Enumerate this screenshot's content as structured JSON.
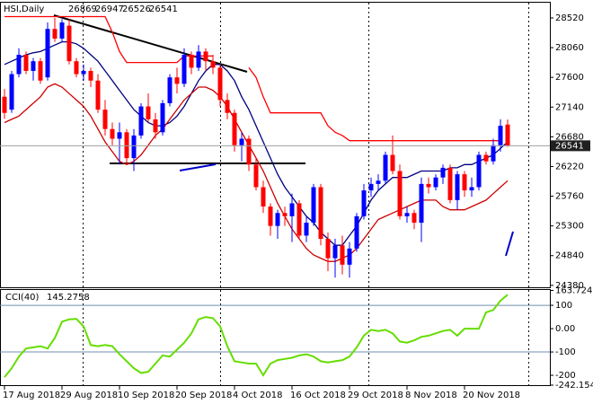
{
  "chart_data": [
    {
      "type": "candlestick",
      "title": "HSI,Daily",
      "x": [
        "17 Aug 2018",
        null,
        null,
        null,
        null,
        null,
        null,
        null,
        "29 Aug 2018",
        null,
        null,
        null,
        null,
        null,
        null,
        null,
        "10 Sep 2018",
        null,
        null,
        null,
        null,
        null,
        null,
        null,
        "20 Sep 2018",
        null,
        null,
        null,
        null,
        null,
        null,
        null,
        "4 Oct 2018",
        null,
        null,
        null,
        null,
        null,
        null,
        null,
        "16 Oct 2018",
        null,
        null,
        null,
        null,
        null,
        null,
        null,
        "29 Oct 2018",
        null,
        null,
        null,
        null,
        null,
        null,
        null,
        "8 Nov 2018",
        null,
        null,
        null,
        null,
        null,
        null,
        null,
        "20 Nov 2018",
        null,
        null,
        null,
        null,
        null,
        null
      ],
      "open": [
        27300,
        27100,
        27650,
        27950,
        27700,
        27850,
        27600,
        28350,
        28200,
        28400,
        27850,
        27650,
        27700,
        27550,
        27100,
        26800,
        26650,
        26750,
        26350,
        26700,
        27150,
        26950,
        26750,
        27200,
        27600,
        27500,
        27950,
        27750,
        28000,
        27850,
        27750,
        27250,
        27050,
        26550,
        26650,
        26250,
        25900,
        25600,
        25300,
        25500,
        25450,
        25650,
        25150,
        25350,
        25900,
        25100,
        24800,
        25000,
        24700,
        24950,
        25450,
        25850,
        25950,
        26000,
        26400,
        26150,
        25450,
        25500,
        25350,
        25950,
        25900,
        26050,
        26200,
        25700,
        26100,
        25850,
        25900,
        26400,
        26300,
        26550,
        26869
      ],
      "high": [
        27420,
        27700,
        28050,
        28000,
        27900,
        27900,
        28450,
        28520,
        28500,
        28500,
        27900,
        27800,
        27750,
        27650,
        27250,
        26900,
        26900,
        26800,
        26800,
        27200,
        27350,
        27050,
        27250,
        27650,
        27750,
        28050,
        28000,
        28100,
        28050,
        27950,
        27800,
        27350,
        27100,
        26750,
        26700,
        26350,
        26000,
        25650,
        25550,
        25600,
        25800,
        25700,
        25450,
        25950,
        25950,
        25200,
        25100,
        25150,
        25050,
        25500,
        25950,
        26050,
        26100,
        26450,
        26700,
        26250,
        25600,
        25550,
        26050,
        26050,
        26100,
        26250,
        26250,
        26150,
        26150,
        26050,
        26450,
        26450,
        26650,
        26950,
        26947
      ],
      "low": [
        26960,
        27050,
        27600,
        27650,
        27550,
        27500,
        27550,
        28150,
        28150,
        27800,
        27600,
        27550,
        27450,
        27050,
        26700,
        26550,
        26250,
        26250,
        26150,
        26650,
        26900,
        26650,
        26700,
        27150,
        27350,
        27450,
        27650,
        27700,
        27700,
        27650,
        27150,
        26950,
        26450,
        26300,
        26150,
        25850,
        25500,
        25150,
        25100,
        25300,
        25050,
        25100,
        25050,
        25300,
        25000,
        24600,
        24500,
        24550,
        24500,
        24900,
        25400,
        25750,
        25850,
        25950,
        26100,
        25400,
        25350,
        25250,
        25050,
        25800,
        25850,
        25950,
        25650,
        25550,
        25750,
        25750,
        25850,
        26250,
        26250,
        26450,
        26526
      ],
      "close": [
        27050,
        27650,
        27950,
        27700,
        27850,
        27550,
        28350,
        28200,
        28450,
        27850,
        27650,
        27700,
        27550,
        27100,
        26800,
        26650,
        26750,
        26350,
        26700,
        27150,
        26950,
        26750,
        27200,
        27600,
        27500,
        27950,
        27750,
        28000,
        27850,
        27750,
        27250,
        27050,
        26550,
        26650,
        26250,
        25900,
        25600,
        25300,
        25500,
        25450,
        25650,
        25150,
        25350,
        25900,
        25100,
        24800,
        25000,
        24700,
        24950,
        25450,
        25850,
        25950,
        26000,
        26400,
        26150,
        25450,
        25500,
        25350,
        25950,
        25900,
        26050,
        26200,
        25700,
        26100,
        25850,
        25900,
        26400,
        26300,
        26550,
        26850,
        26541
      ],
      "up_color": "#0000ff",
      "down_color": "#ff0000",
      "overlays": [
        {
          "color": "#000080",
          "values": [
            27800,
            27850,
            27900,
            27950,
            27980,
            28000,
            28050,
            28100,
            28150,
            28150,
            28120,
            28050,
            27950,
            27850,
            27700,
            27550,
            27400,
            27250,
            27100,
            27000,
            26900,
            26850,
            26850,
            26900,
            27000,
            27150,
            27350,
            27550,
            27700,
            27800,
            27800,
            27700,
            27550,
            27300,
            27100,
            26850,
            26600,
            26350,
            26100,
            25900,
            25750,
            25600,
            25450,
            25350,
            25200,
            25100,
            25000,
            25000,
            25150,
            25300,
            25500,
            25700,
            25850,
            25950,
            26050,
            26050,
            26050,
            26100,
            26150,
            26150,
            26150,
            26150,
            26200,
            26200,
            26250,
            26250,
            26300,
            26350,
            26400,
            26500,
            26600
          ]
        },
        {
          "color": "#cc0000",
          "values": [
            26900,
            26950,
            27000,
            27100,
            27200,
            27300,
            27450,
            27500,
            27450,
            27350,
            27250,
            27150,
            27000,
            26800,
            26600,
            26450,
            26300,
            26250,
            26300,
            26400,
            26550,
            26700,
            26800,
            26950,
            27100,
            27250,
            27350,
            27450,
            27450,
            27400,
            27300,
            27150,
            26950,
            26750,
            26550,
            26350,
            26150,
            25900,
            25650,
            25450,
            25250,
            25100,
            24950,
            24850,
            24800,
            24750,
            24750,
            24800,
            24850,
            24950,
            25100,
            25250,
            25400,
            25450,
            25500,
            25550,
            25600,
            25650,
            25700,
            25700,
            25700,
            25600,
            25550,
            25550,
            25550,
            25600,
            25650,
            25700,
            25800,
            25900,
            26000
          ]
        },
        {
          "color": "#ff0000",
          "values": [
            28540,
            28540,
            28540,
            28540,
            28540,
            28540,
            28540,
            28540,
            28540,
            28540,
            28540,
            28540,
            28540,
            28540,
            28540,
            28300,
            28000,
            27830,
            27830,
            27830,
            27830,
            27830,
            27830,
            27830,
            27830,
            27930,
            27930,
            27930,
            27930,
            27930,
            null,
            null,
            null,
            null,
            27750,
            27600,
            27300,
            27050,
            27050,
            27050,
            27050,
            27050,
            27050,
            27050,
            27050,
            26850,
            26750,
            26700,
            26620,
            26620,
            26620,
            26620,
            26620,
            26620,
            26620,
            26620,
            26620,
            26620,
            26620,
            26620,
            26620,
            26620,
            26620,
            26620,
            26620,
            26620,
            26620,
            26620,
            26620,
            26620,
            null
          ]
        }
      ],
      "ylim": [
        24350,
        28756
      ],
      "yticks": [
        28520,
        28060,
        27600,
        27140,
        26680,
        26220,
        25760,
        25300,
        24840,
        24380
      ]
    },
    {
      "type": "line",
      "title": "CCI(40)",
      "color": "#66dd00",
      "values": [
        -208,
        -170,
        -120,
        -85,
        -80,
        -75,
        -85,
        -40,
        30,
        40,
        42,
        10,
        -70,
        -75,
        -70,
        -75,
        -110,
        -140,
        -170,
        -190,
        -185,
        -150,
        -115,
        -120,
        -90,
        -60,
        -20,
        40,
        50,
        45,
        10,
        -75,
        -140,
        -145,
        -150,
        -150,
        -200,
        -150,
        -135,
        -130,
        -125,
        -115,
        -110,
        -120,
        -140,
        -145,
        -140,
        -135,
        -120,
        -80,
        -30,
        -5,
        -10,
        -5,
        -20,
        -55,
        -60,
        -50,
        -35,
        -30,
        -20,
        -10,
        -5,
        -30,
        0,
        0,
        0,
        70,
        80,
        120,
        145.2758
      ],
      "ylim": [
        -242.154,
        163.7249
      ],
      "yticks": [
        163.7249,
        100,
        {
          "value": 0,
          "label": "0.00"
        },
        -100,
        -200,
        -242.154
      ],
      "levels": [
        100,
        -100
      ],
      "level_color": "#6f8fb0"
    }
  ]
}
